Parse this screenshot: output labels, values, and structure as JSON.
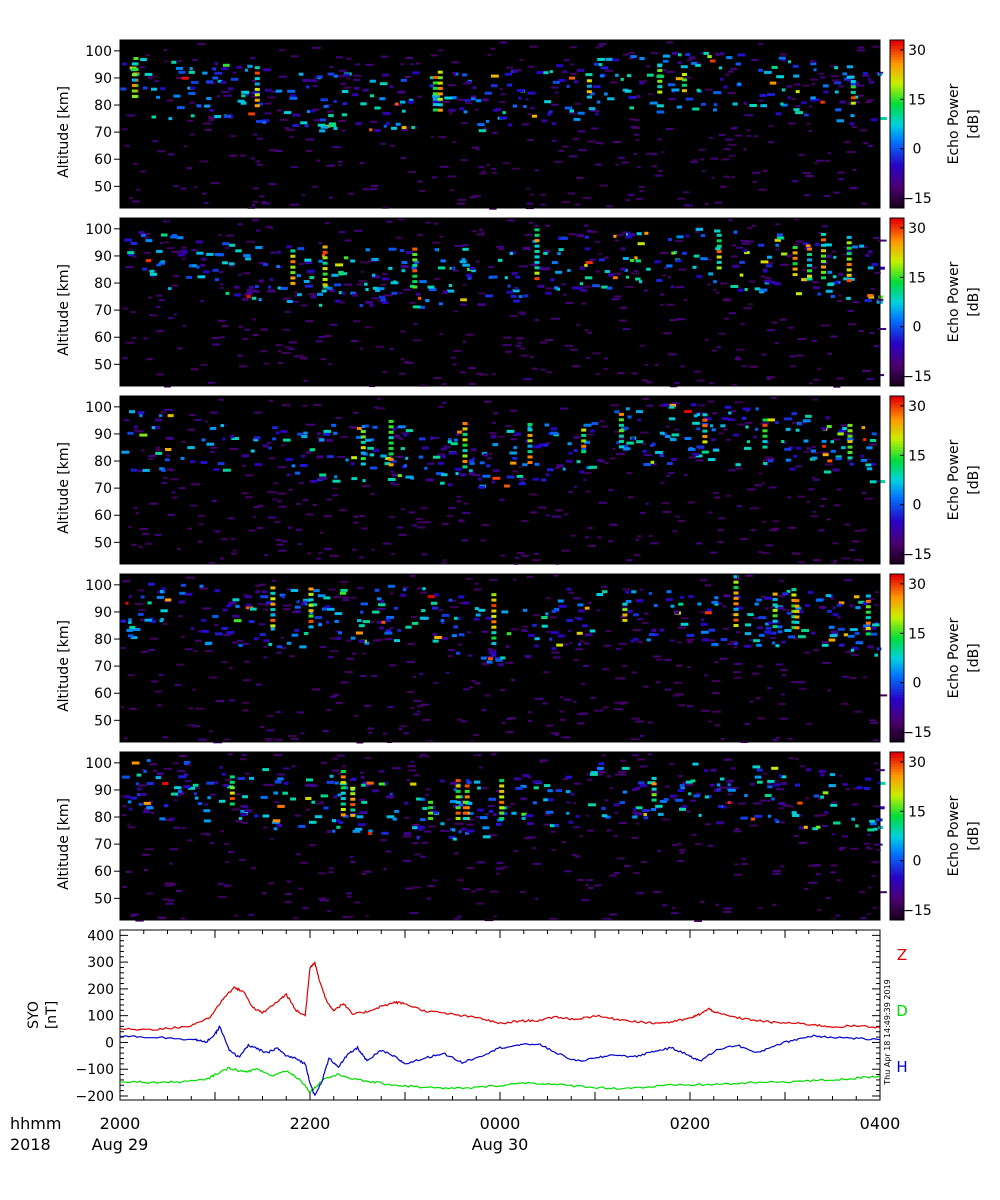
{
  "chart_data": [
    {
      "type": "heatmap",
      "panel": 1,
      "ylabel": "Altitude [km]",
      "yticks": [
        50,
        60,
        70,
        80,
        90,
        100
      ],
      "ylim": [
        42,
        104
      ],
      "xlim_hours": [
        20,
        28
      ],
      "colorbar": {
        "label": "Echo Power",
        "unit": "[dB]",
        "ticks": [
          -15,
          0,
          15,
          30
        ],
        "range": [
          -18,
          33
        ]
      },
      "background": "#000000",
      "echo_layer": [
        {
          "time": "2000",
          "alt": 84
        },
        {
          "time": "2100",
          "alt": 82
        },
        {
          "time": "2200",
          "alt": 78
        },
        {
          "time": "2300",
          "alt": 79
        },
        {
          "time": "0000",
          "alt": 78
        },
        {
          "time": "0100",
          "alt": 84
        },
        {
          "time": "0200",
          "alt": 86
        },
        {
          "time": "0300",
          "alt": 84
        },
        {
          "time": "0400",
          "alt": 80
        }
      ]
    },
    {
      "type": "heatmap",
      "panel": 2,
      "ylabel": "Altitude [km]",
      "yticks": [
        50,
        60,
        70,
        80,
        90,
        100
      ],
      "ylim": [
        42,
        104
      ],
      "xlim_hours": [
        20,
        28
      ],
      "colorbar": {
        "label": "Echo Power",
        "unit": "[dB]",
        "ticks": [
          -15,
          0,
          15,
          30
        ],
        "range": [
          -18,
          33
        ]
      },
      "background": "#000000",
      "echo_layer": [
        {
          "time": "2000",
          "alt": 86
        },
        {
          "time": "2100",
          "alt": 82
        },
        {
          "time": "2200",
          "alt": 80
        },
        {
          "time": "2300",
          "alt": 79
        },
        {
          "time": "0000",
          "alt": 80
        },
        {
          "time": "0100",
          "alt": 86
        },
        {
          "time": "0200",
          "alt": 87
        },
        {
          "time": "0300",
          "alt": 84
        },
        {
          "time": "0400",
          "alt": 80
        }
      ]
    },
    {
      "type": "heatmap",
      "panel": 3,
      "ylabel": "Altitude [km]",
      "yticks": [
        50,
        60,
        70,
        80,
        90,
        100
      ],
      "ylim": [
        42,
        104
      ],
      "xlim_hours": [
        20,
        28
      ],
      "colorbar": {
        "label": "Echo Power",
        "unit": "[dB]",
        "ticks": [
          -15,
          0,
          15,
          30
        ],
        "range": [
          -18,
          33
        ]
      },
      "background": "#000000",
      "echo_layer": [
        {
          "time": "2000",
          "alt": 85
        },
        {
          "time": "2100",
          "alt": 82
        },
        {
          "time": "2200",
          "alt": 80
        },
        {
          "time": "2300",
          "alt": 79
        },
        {
          "time": "0000",
          "alt": 78
        },
        {
          "time": "0100",
          "alt": 85
        },
        {
          "time": "0200",
          "alt": 88
        },
        {
          "time": "0300",
          "alt": 85
        },
        {
          "time": "0400",
          "alt": 80
        }
      ]
    },
    {
      "type": "heatmap",
      "panel": 4,
      "ylabel": "Altitude [km]",
      "yticks": [
        50,
        60,
        70,
        80,
        90,
        100
      ],
      "ylim": [
        42,
        104
      ],
      "xlim_hours": [
        20,
        28
      ],
      "colorbar": {
        "label": "Echo Power",
        "unit": "[dB]",
        "ticks": [
          -15,
          0,
          15,
          30
        ],
        "range": [
          -18,
          33
        ]
      },
      "background": "#000000",
      "echo_layer": [
        {
          "time": "2000",
          "alt": 88
        },
        {
          "time": "2100",
          "alt": 86
        },
        {
          "time": "2200",
          "alt": 85
        },
        {
          "time": "2300",
          "alt": 88
        },
        {
          "time": "0000",
          "alt": 78
        },
        {
          "time": "0100",
          "alt": 88
        },
        {
          "time": "0200",
          "alt": 86
        },
        {
          "time": "0300",
          "alt": 85
        },
        {
          "time": "0400",
          "alt": 82
        }
      ]
    },
    {
      "type": "heatmap",
      "panel": 5,
      "ylabel": "Altitude [km]",
      "yticks": [
        50,
        60,
        70,
        80,
        90,
        100
      ],
      "ylim": [
        42,
        104
      ],
      "xlim_hours": [
        20,
        28
      ],
      "colorbar": {
        "label": "Echo Power",
        "unit": "[dB]",
        "ticks": [
          -15,
          0,
          15,
          30
        ],
        "range": [
          -18,
          33
        ]
      },
      "background": "#000000",
      "echo_layer": [
        {
          "time": "2000",
          "alt": 88
        },
        {
          "time": "2100",
          "alt": 86
        },
        {
          "time": "2200",
          "alt": 82
        },
        {
          "time": "2300",
          "alt": 80
        },
        {
          "time": "0000",
          "alt": 80
        },
        {
          "time": "0100",
          "alt": 88
        },
        {
          "time": "0200",
          "alt": 86
        },
        {
          "time": "0300",
          "alt": 85
        },
        {
          "time": "0400",
          "alt": 80
        }
      ]
    },
    {
      "type": "line",
      "panel": 6,
      "ylabel": "SYO",
      "yunit": "[nT]",
      "yticks": [
        -200,
        -100,
        0,
        100,
        200,
        300,
        400
      ],
      "ylim": [
        -215,
        420
      ],
      "xlim_hours": [
        20,
        28
      ],
      "series": [
        {
          "name": "Z",
          "color": "#dd0000",
          "points": [
            [
              20.0,
              50
            ],
            [
              20.3,
              48
            ],
            [
              20.5,
              52
            ],
            [
              20.75,
              62
            ],
            [
              20.95,
              95
            ],
            [
              21.1,
              170
            ],
            [
              21.2,
              205
            ],
            [
              21.3,
              190
            ],
            [
              21.4,
              130
            ],
            [
              21.5,
              110
            ],
            [
              21.65,
              150
            ],
            [
              21.75,
              180
            ],
            [
              21.85,
              120
            ],
            [
              21.95,
              100
            ],
            [
              22.0,
              280
            ],
            [
              22.05,
              300
            ],
            [
              22.1,
              230
            ],
            [
              22.18,
              150
            ],
            [
              22.25,
              120
            ],
            [
              22.35,
              145
            ],
            [
              22.45,
              105
            ],
            [
              22.6,
              115
            ],
            [
              22.75,
              135
            ],
            [
              22.9,
              150
            ],
            [
              23.0,
              145
            ],
            [
              23.2,
              118
            ],
            [
              23.4,
              110
            ],
            [
              23.6,
              100
            ],
            [
              23.8,
              90
            ],
            [
              24.0,
              70
            ],
            [
              24.2,
              80
            ],
            [
              24.4,
              82
            ],
            [
              24.6,
              95
            ],
            [
              24.8,
              86
            ],
            [
              25.0,
              100
            ],
            [
              25.2,
              88
            ],
            [
              25.4,
              80
            ],
            [
              25.6,
              72
            ],
            [
              25.8,
              76
            ],
            [
              26.0,
              90
            ],
            [
              26.1,
              105
            ],
            [
              26.2,
              125
            ],
            [
              26.3,
              108
            ],
            [
              26.5,
              92
            ],
            [
              26.7,
              82
            ],
            [
              26.9,
              74
            ],
            [
              27.1,
              72
            ],
            [
              27.3,
              66
            ],
            [
              27.5,
              58
            ],
            [
              27.75,
              62
            ],
            [
              28.0,
              55
            ]
          ]
        },
        {
          "name": "D",
          "color": "#00dd00",
          "points": [
            [
              20.0,
              -145
            ],
            [
              20.3,
              -150
            ],
            [
              20.6,
              -148
            ],
            [
              20.9,
              -140
            ],
            [
              21.0,
              -120
            ],
            [
              21.15,
              -95
            ],
            [
              21.3,
              -110
            ],
            [
              21.45,
              -100
            ],
            [
              21.6,
              -125
            ],
            [
              21.75,
              -105
            ],
            [
              21.9,
              -140
            ],
            [
              22.0,
              -185
            ],
            [
              22.08,
              -160
            ],
            [
              22.15,
              -135
            ],
            [
              22.3,
              -120
            ],
            [
              22.5,
              -140
            ],
            [
              22.7,
              -150
            ],
            [
              22.9,
              -160
            ],
            [
              23.1,
              -165
            ],
            [
              23.4,
              -172
            ],
            [
              23.7,
              -170
            ],
            [
              24.0,
              -160
            ],
            [
              24.3,
              -150
            ],
            [
              24.6,
              -158
            ],
            [
              24.9,
              -165
            ],
            [
              25.2,
              -172
            ],
            [
              25.5,
              -168
            ],
            [
              25.8,
              -160
            ],
            [
              26.1,
              -158
            ],
            [
              26.4,
              -155
            ],
            [
              26.7,
              -150
            ],
            [
              27.0,
              -147
            ],
            [
              27.3,
              -143
            ],
            [
              27.6,
              -138
            ],
            [
              27.8,
              -132
            ],
            [
              28.0,
              -125
            ]
          ]
        },
        {
          "name": "H",
          "color": "#0000cc",
          "points": [
            [
              20.0,
              25
            ],
            [
              20.3,
              20
            ],
            [
              20.6,
              15
            ],
            [
              20.8,
              10
            ],
            [
              20.9,
              0
            ],
            [
              21.0,
              30
            ],
            [
              21.05,
              60
            ],
            [
              21.15,
              -30
            ],
            [
              21.25,
              -55
            ],
            [
              21.35,
              -10
            ],
            [
              21.45,
              -25
            ],
            [
              21.55,
              -40
            ],
            [
              21.65,
              -20
            ],
            [
              21.75,
              -50
            ],
            [
              21.85,
              -60
            ],
            [
              21.95,
              -80
            ],
            [
              22.0,
              -150
            ],
            [
              22.05,
              -200
            ],
            [
              22.12,
              -150
            ],
            [
              22.2,
              -60
            ],
            [
              22.3,
              -90
            ],
            [
              22.4,
              -45
            ],
            [
              22.5,
              -20
            ],
            [
              22.6,
              -70
            ],
            [
              22.75,
              -30
            ],
            [
              22.9,
              -55
            ],
            [
              23.0,
              -80
            ],
            [
              23.2,
              -60
            ],
            [
              23.4,
              -40
            ],
            [
              23.6,
              -75
            ],
            [
              23.8,
              -50
            ],
            [
              24.0,
              -20
            ],
            [
              24.2,
              -10
            ],
            [
              24.4,
              -5
            ],
            [
              24.6,
              -40
            ],
            [
              24.8,
              -70
            ],
            [
              25.0,
              -60
            ],
            [
              25.2,
              -45
            ],
            [
              25.4,
              -55
            ],
            [
              25.6,
              -35
            ],
            [
              25.8,
              -20
            ],
            [
              26.0,
              -50
            ],
            [
              26.1,
              -70
            ],
            [
              26.3,
              -25
            ],
            [
              26.5,
              -10
            ],
            [
              26.7,
              -40
            ],
            [
              26.9,
              -10
            ],
            [
              27.1,
              10
            ],
            [
              27.3,
              25
            ],
            [
              27.5,
              20
            ],
            [
              27.75,
              15
            ],
            [
              28.0,
              10
            ]
          ]
        }
      ]
    }
  ],
  "axis": {
    "x_row_label_1": "hhmm",
    "x_row_label_2": "2018",
    "ticks": [
      {
        "hour": 20,
        "label": "2000",
        "date": "Aug 29"
      },
      {
        "hour": 22,
        "label": "2200",
        "date": ""
      },
      {
        "hour": 24,
        "label": "0000",
        "date": "Aug 30"
      },
      {
        "hour": 26,
        "label": "0200",
        "date": ""
      },
      {
        "hour": 28,
        "label": "0400",
        "date": ""
      }
    ]
  },
  "timestamp": "Thu Apr 18 14:49:39 2019"
}
